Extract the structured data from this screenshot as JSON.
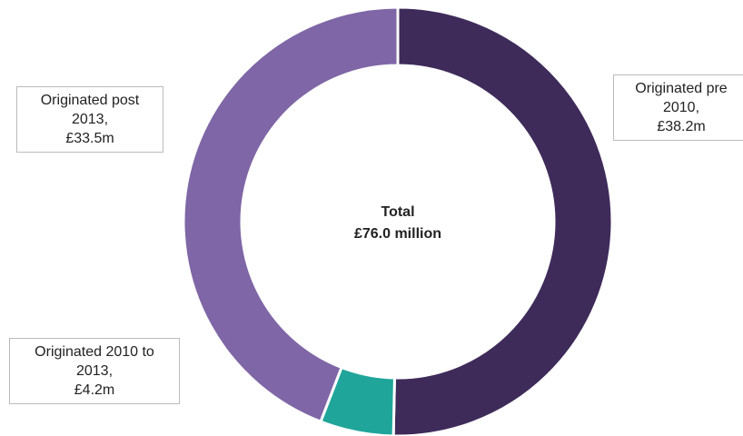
{
  "chart_data": {
    "type": "donut",
    "categories": [
      "Originated pre 2010,",
      "Originated 2010 to 2013,",
      "Originated post 2013,"
    ],
    "values": [
      38.2,
      4.2,
      33.5
    ],
    "value_labels": [
      "£38.2m",
      "£4.2m",
      "£33.5m"
    ],
    "colors": [
      "#3e2b5a",
      "#1fa59a",
      "#7f66a6"
    ],
    "center_text": [
      "Total",
      "£76.0 million"
    ]
  }
}
